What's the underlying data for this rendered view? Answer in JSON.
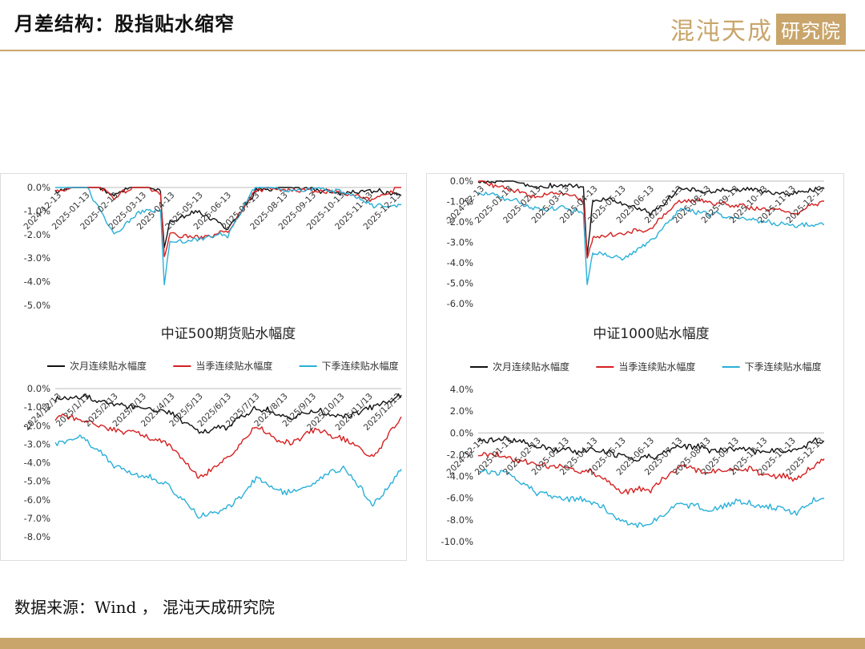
{
  "header": {
    "title": "月差结构：股指贴水缩窄"
  },
  "logo": {
    "script_text": "混沌天成",
    "box_text": "研究院"
  },
  "colors": {
    "accent": "#c9a56b",
    "next_month": "#111111",
    "current_quarter": "#d62020",
    "next_quarter": "#2ab0d8"
  },
  "source": {
    "text": "数据来源：Wind ， 混沌天成研究院"
  },
  "chart_data": [
    {
      "type": "line",
      "title": "",
      "ylim": [
        -5,
        0
      ],
      "yticks": [
        0,
        -1,
        -2,
        -3,
        -4,
        -5
      ],
      "xlabels": [
        "2024-12-13",
        "2025-01-13",
        "2025-02-13",
        "2025-03-13",
        "2025-04-13",
        "2025-05-13",
        "2025-06-13",
        "2025-07-13",
        "2025-08-13",
        "2025-09-13",
        "2025-10-13",
        "2025-11-13",
        "2025-12-13"
      ],
      "x": [
        "2024-12-13",
        "2025-01-13",
        "2025-02-13",
        "2025-03-13",
        "2025-04-03",
        "2025-04-07",
        "2025-04-13",
        "2025-05-13",
        "2025-06-13",
        "2025-07-13",
        "2025-08-13",
        "2025-09-13",
        "2025-10-13",
        "2025-11-13",
        "2025-12-13"
      ],
      "series": [
        {
          "name": "",
          "color": "#111111",
          "values": [
            -0.2,
            0.2,
            -0.3,
            0.2,
            -0.2,
            -2.6,
            -1.4,
            -1.0,
            -1.8,
            -0.1,
            0.1,
            -0.1,
            -0.3,
            -0.1,
            -0.3
          ]
        },
        {
          "name": "",
          "color": "#d62020",
          "values": [
            -0.2,
            0.3,
            -0.4,
            0.2,
            -0.3,
            -2.9,
            -2.0,
            -2.1,
            -1.9,
            -0.1,
            -0.1,
            -0.1,
            -0.2,
            -0.6,
            0.1
          ]
        },
        {
          "name": "",
          "color": "#2ab0d8",
          "values": [
            0.1,
            0.2,
            -2.0,
            -1.0,
            -1.0,
            -4.2,
            -2.3,
            -2.2,
            -2.0,
            0.1,
            -0.1,
            -0.1,
            -0.2,
            -0.8,
            -0.7
          ]
        }
      ]
    },
    {
      "type": "line",
      "title": "",
      "ylim": [
        -6,
        0
      ],
      "yticks": [
        0,
        -1,
        -2,
        -3,
        -4,
        -5,
        -6
      ],
      "xlabels": [
        "2024-12-13",
        "2025-01-13",
        "2025-02-13",
        "2025-03-13",
        "2025-04-13",
        "2025-05-13",
        "2025-06-13",
        "2025-07-13",
        "2025-08-13",
        "2025-09-13",
        "2025-10-13",
        "2025-11-13",
        "2025-12-13"
      ],
      "x": [
        "2024-12-13",
        "2025-01-13",
        "2025-02-13",
        "2025-03-13",
        "2025-04-03",
        "2025-04-07",
        "2025-04-13",
        "2025-05-13",
        "2025-06-13",
        "2025-07-13",
        "2025-08-13",
        "2025-09-13",
        "2025-10-13",
        "2025-11-13",
        "2025-12-13"
      ],
      "series": [
        {
          "name": "",
          "color": "#111111",
          "values": [
            0.0,
            0.1,
            -0.3,
            -0.2,
            -0.3,
            -3.6,
            -0.9,
            -1.0,
            -1.6,
            -0.4,
            -0.5,
            -0.4,
            -0.6,
            -0.6,
            -0.4
          ]
        },
        {
          "name": "",
          "color": "#d62020",
          "values": [
            0.0,
            -0.4,
            -0.8,
            -0.6,
            -0.9,
            -3.8,
            -2.8,
            -2.6,
            -2.3,
            -0.9,
            -1.0,
            -1.2,
            -1.4,
            -1.5,
            -1.0
          ]
        },
        {
          "name": "",
          "color": "#2ab0d8",
          "values": [
            -0.5,
            -0.8,
            -1.4,
            -1.3,
            -1.6,
            -5.0,
            -3.4,
            -3.8,
            -3.0,
            -1.4,
            -1.6,
            -1.8,
            -2.0,
            -2.2,
            -2.0
          ]
        }
      ]
    },
    {
      "type": "line",
      "title": "中证500期货贴水幅度",
      "ylim": [
        -8,
        0
      ],
      "yticks": [
        0,
        -1,
        -2,
        -3,
        -4,
        -5,
        -6,
        -7,
        -8
      ],
      "xlabels": [
        "2024/12/13",
        "2025/1/13",
        "2025/2/13",
        "2025/3/13",
        "2025/4/13",
        "2025/5/13",
        "2025/6/13",
        "2025/7/13",
        "2025/8/13",
        "2025/9/13",
        "2025/10/13",
        "2025/11/13",
        "2025/12/13"
      ],
      "x": [
        "2024-12-13",
        "2025-01-13",
        "2025-02-13",
        "2025-03-13",
        "2025-04-13",
        "2025-05-13",
        "2025-06-13",
        "2025-07-13",
        "2025-08-13",
        "2025-09-13",
        "2025-10-13",
        "2025-11-13",
        "2025-12-13"
      ],
      "legend": [
        "次月连续贴水幅度",
        "当季连续贴水幅度",
        "下季连续贴水幅度"
      ],
      "series": [
        {
          "name": "次月连续贴水幅度",
          "color": "#111111",
          "values": [
            -0.5,
            -0.4,
            -0.9,
            -1.0,
            -1.3,
            -2.3,
            -2.0,
            -1.0,
            -1.5,
            -1.2,
            -1.6,
            -1.0,
            -0.4
          ]
        },
        {
          "name": "当季连续贴水幅度",
          "color": "#d62020",
          "values": [
            -1.5,
            -1.6,
            -2.3,
            -2.5,
            -3.0,
            -4.8,
            -3.8,
            -2.0,
            -3.0,
            -2.2,
            -2.6,
            -3.7,
            -1.6
          ]
        },
        {
          "name": "下季连续贴水幅度",
          "color": "#2ab0d8",
          "values": [
            -3.0,
            -2.6,
            -4.1,
            -4.6,
            -5.3,
            -6.9,
            -6.5,
            -4.9,
            -5.7,
            -5.0,
            -4.2,
            -6.3,
            -4.4
          ]
        }
      ]
    },
    {
      "type": "line",
      "title": "中证1000贴水幅度",
      "ylim": [
        -10,
        4
      ],
      "yticks": [
        4,
        2,
        0,
        -2,
        -4,
        -6,
        -8,
        -10
      ],
      "xlabels": [
        "2024-12-13",
        "2025-01-13",
        "2025-02-13",
        "2025-03-13",
        "2025-04-13",
        "2025-05-13",
        "2025-06-13",
        "2025-07-13",
        "2025-08-13",
        "2025-09-13",
        "2025-10-13",
        "2025-11-13",
        "2025-12-13"
      ],
      "x": [
        "2024-12-13",
        "2025-01-13",
        "2025-02-13",
        "2025-03-13",
        "2025-04-13",
        "2025-05-13",
        "2025-06-13",
        "2025-07-13",
        "2025-08-13",
        "2025-09-13",
        "2025-10-13",
        "2025-11-13",
        "2025-12-13"
      ],
      "legend": [
        "次月连续贴水幅度",
        "当季连续贴水幅度",
        "下季连续贴水幅度"
      ],
      "series": [
        {
          "name": "次月连续贴水幅度",
          "color": "#111111",
          "values": [
            -0.6,
            -0.7,
            -1.2,
            -1.5,
            -1.6,
            -2.2,
            -2.3,
            -1.2,
            -1.5,
            -1.4,
            -1.8,
            -1.3,
            -0.6
          ]
        },
        {
          "name": "当季连续贴水幅度",
          "color": "#d62020",
          "values": [
            -2.0,
            -2.2,
            -2.8,
            -3.2,
            -3.5,
            -5.3,
            -5.2,
            -3.0,
            -3.8,
            -3.2,
            -3.8,
            -4.2,
            -2.6
          ]
        },
        {
          "name": "下季连续贴水幅度",
          "color": "#2ab0d8",
          "values": [
            -3.5,
            -3.8,
            -5.5,
            -6.0,
            -6.3,
            -8.3,
            -8.5,
            -6.4,
            -7.2,
            -6.2,
            -6.8,
            -7.2,
            -5.8
          ]
        }
      ]
    }
  ]
}
